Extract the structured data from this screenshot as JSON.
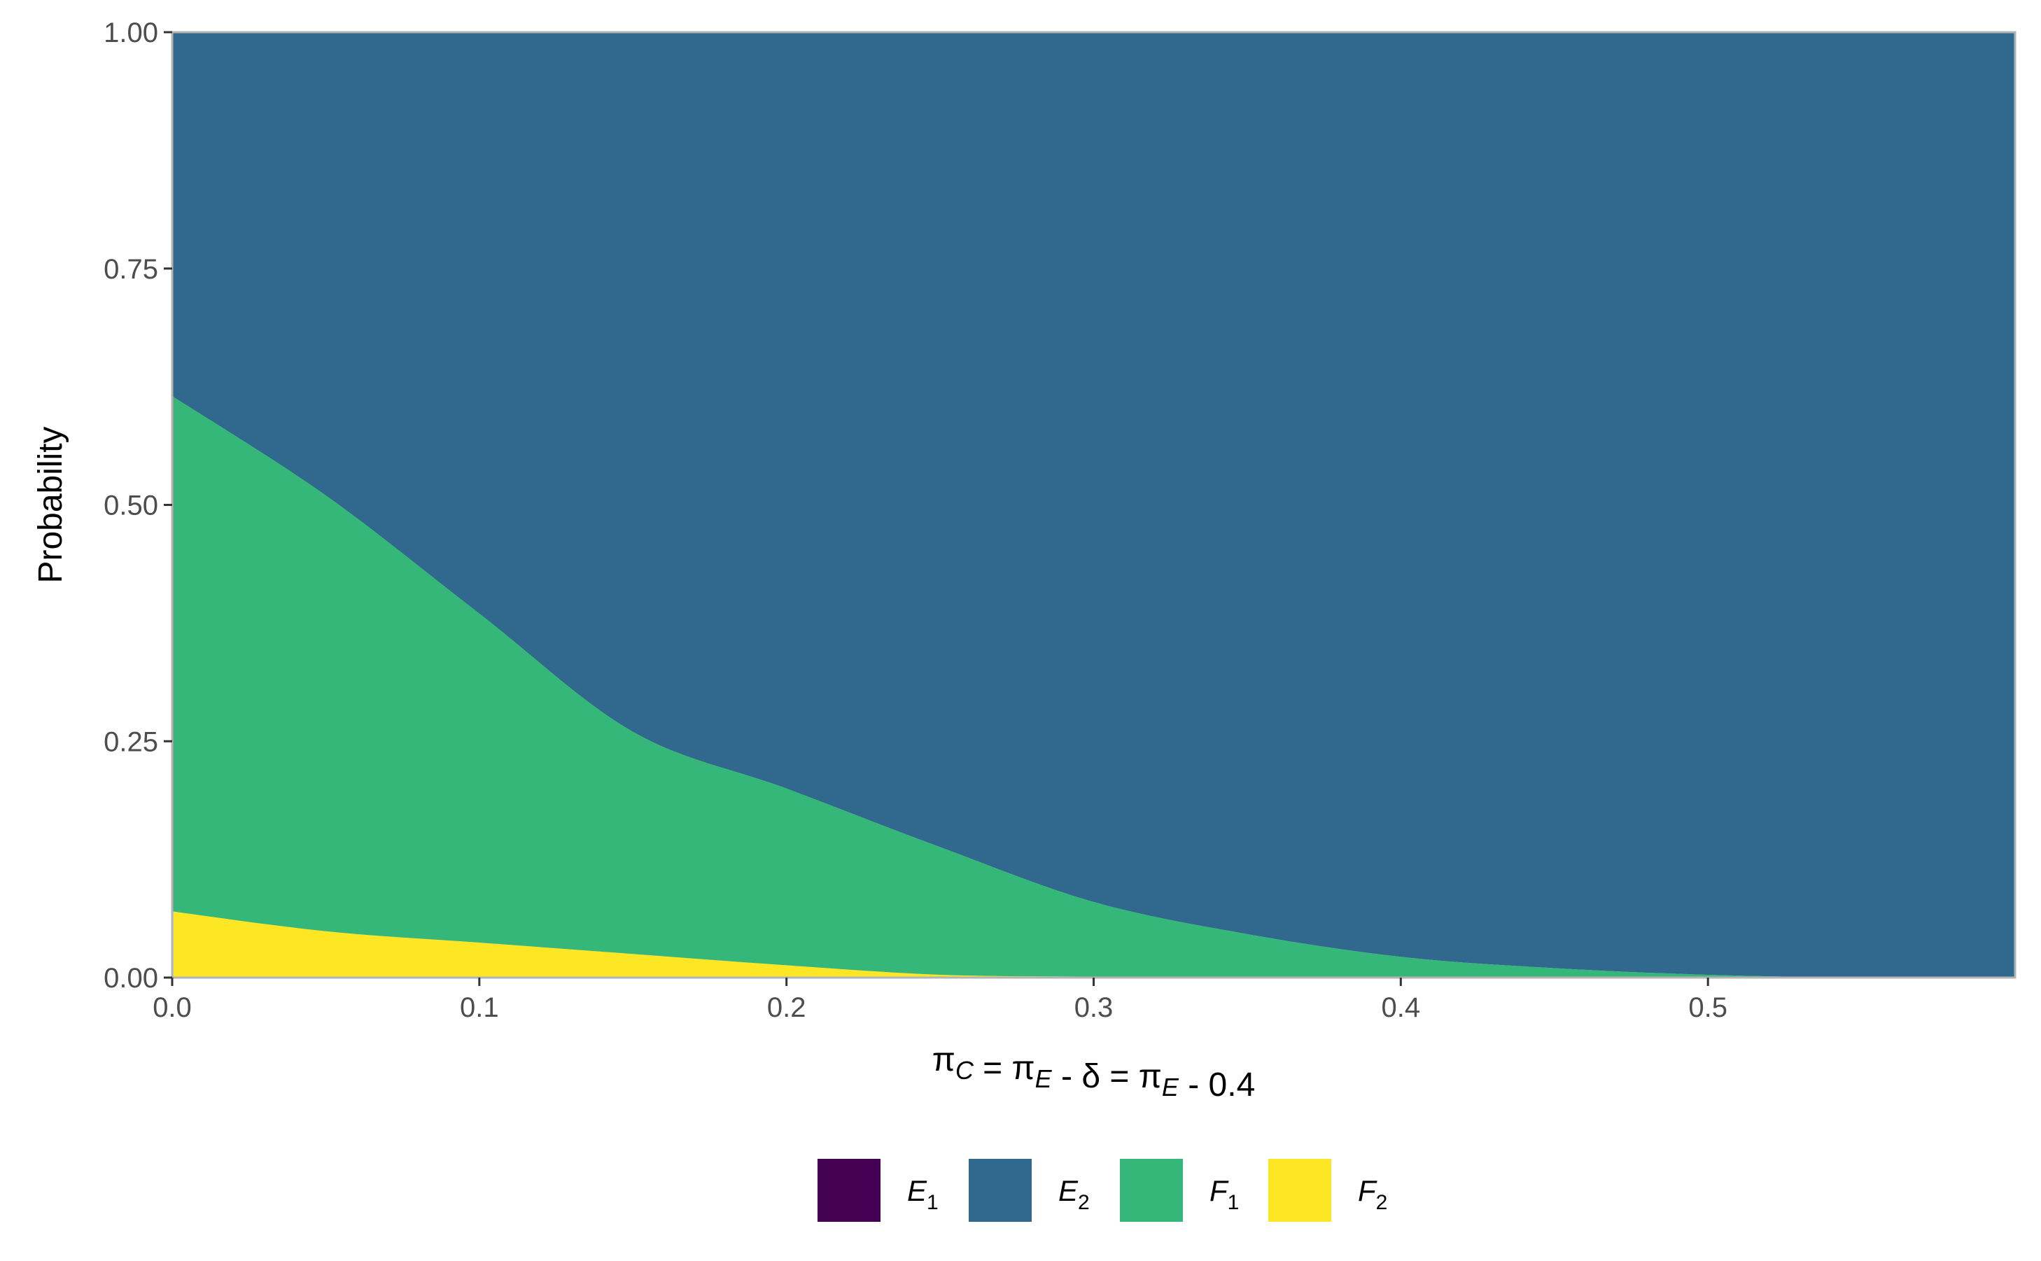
{
  "chart_data": {
    "type": "area",
    "stacked": true,
    "ylabel": "Probability",
    "xlabel": "πC = πE - δ = πE - 0.4",
    "xlabel_parts": [
      {
        "text": "π"
      },
      {
        "text": "C",
        "sub": true
      },
      {
        "text": " = π"
      },
      {
        "text": "E",
        "sub": true
      },
      {
        "text": " - δ = π"
      },
      {
        "text": "E",
        "sub": true
      },
      {
        "text": " - 0.4"
      }
    ],
    "xlim": [
      0,
      0.6
    ],
    "ylim": [
      0,
      1
    ],
    "x_ticks": [
      "0.0",
      "0.1",
      "0.2",
      "0.3",
      "0.4",
      "0.5"
    ],
    "y_ticks": [
      "0.00",
      "0.25",
      "0.50",
      "0.75",
      "1.00"
    ],
    "grid": false,
    "legend_position": "bottom",
    "x": [
      0.0,
      0.05,
      0.1,
      0.15,
      0.2,
      0.25,
      0.3,
      0.35,
      0.4,
      0.45,
      0.5,
      0.55,
      0.6
    ],
    "series": [
      {
        "name": "E",
        "sub": "1",
        "color": "#440154",
        "values": [
          0,
          0,
          0,
          0,
          0,
          0,
          0,
          0,
          0,
          0,
          0,
          0,
          0
        ]
      },
      {
        "name": "E",
        "sub": "2",
        "color": "#31688E",
        "values": [
          0.385,
          0.49,
          0.615,
          0.74,
          0.8,
          0.862,
          0.92,
          0.954,
          0.978,
          0.99,
          0.997,
          1.0,
          1.0
        ]
      },
      {
        "name": "F",
        "sub": "1",
        "color": "#35B779",
        "values": [
          0.545,
          0.461,
          0.348,
          0.235,
          0.187,
          0.135,
          0.079,
          0.046,
          0.022,
          0.01,
          0.003,
          0.0,
          0.0
        ]
      },
      {
        "name": "F",
        "sub": "2",
        "color": "#FDE725",
        "values": [
          0.07,
          0.049,
          0.037,
          0.025,
          0.013,
          0.003,
          0.001,
          0.0,
          0.0,
          0.0,
          0.0,
          0.0,
          0.0
        ]
      }
    ]
  }
}
